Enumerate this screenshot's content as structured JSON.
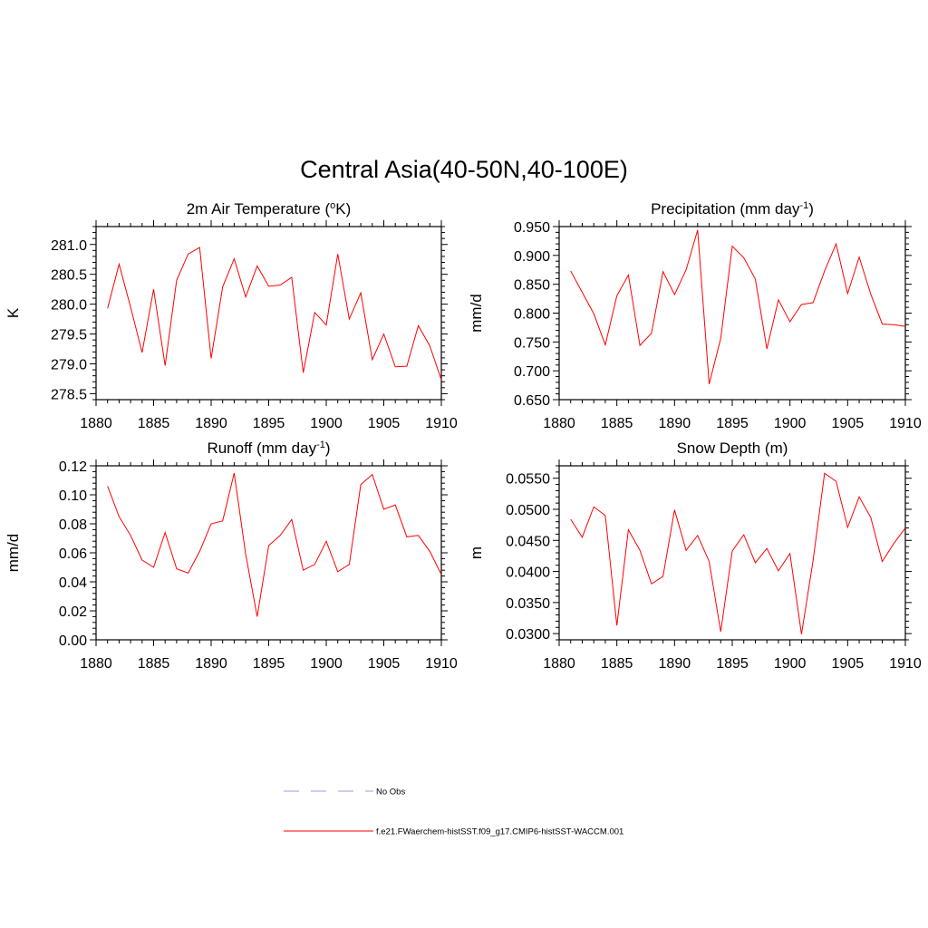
{
  "figure": {
    "title": "Central Asia(40-50N,40-100E)"
  },
  "legend": {
    "entries": [
      {
        "label": "No Obs",
        "color": "#9c9ce0",
        "style": "dashed"
      },
      {
        "label": "f.e21.FWaerchem-histSST.f09_g17.CMIP6-histSST-WACCM.001",
        "color": "#ff0000",
        "style": "solid"
      }
    ]
  },
  "colors": {
    "line": "#ff0000",
    "axis": "#000000"
  },
  "chart_data": [
    {
      "type": "line",
      "title": "2m Air Temperature (°K)",
      "title_parts": {
        "pre": "2m Air Temperature (",
        "sup": "o",
        "post": "K)"
      },
      "ylabel": "K",
      "xlim": [
        1880,
        1910
      ],
      "ylim": [
        278.4,
        281.3
      ],
      "xticks": [
        1880,
        1885,
        1890,
        1895,
        1900,
        1905,
        1910
      ],
      "yticks": [
        278.5,
        279.0,
        279.5,
        280.0,
        280.5,
        281.0
      ],
      "ytick_labels": [
        "278.5",
        "279.0",
        "279.5",
        "280.0",
        "280.5",
        "281.0"
      ],
      "x": [
        1881,
        1882,
        1883,
        1884,
        1885,
        1886,
        1887,
        1888,
        1889,
        1890,
        1891,
        1892,
        1893,
        1894,
        1895,
        1896,
        1897,
        1898,
        1899,
        1900,
        1901,
        1902,
        1903,
        1904,
        1905,
        1906,
        1907,
        1908,
        1909,
        1910
      ],
      "series": [
        {
          "values": [
            279.93,
            280.67,
            279.95,
            279.19,
            280.25,
            278.97,
            280.4,
            280.84,
            280.95,
            279.09,
            280.29,
            280.76,
            280.12,
            280.64,
            280.3,
            280.32,
            280.45,
            278.85,
            279.86,
            279.65,
            280.84,
            279.75,
            280.19,
            279.07,
            279.5,
            278.95,
            278.96,
            279.64,
            279.3,
            278.73
          ]
        }
      ]
    },
    {
      "type": "line",
      "title": "Precipitation (mm day-1)",
      "title_parts": {
        "pre": "Precipitation (mm day",
        "sup": "-1",
        "post": ")"
      },
      "ylabel": "mm/d",
      "xlim": [
        1880,
        1910
      ],
      "ylim": [
        0.65,
        0.95
      ],
      "xticks": [
        1880,
        1885,
        1890,
        1895,
        1900,
        1905,
        1910
      ],
      "yticks": [
        0.65,
        0.7,
        0.75,
        0.8,
        0.85,
        0.9,
        0.95
      ],
      "ytick_labels": [
        "0.650",
        "0.700",
        "0.750",
        "0.800",
        "0.850",
        "0.900",
        "0.950"
      ],
      "x": [
        1881,
        1882,
        1883,
        1884,
        1885,
        1886,
        1887,
        1888,
        1889,
        1890,
        1891,
        1892,
        1893,
        1894,
        1895,
        1896,
        1897,
        1898,
        1899,
        1900,
        1901,
        1902,
        1903,
        1904,
        1905,
        1906,
        1907,
        1908,
        1909,
        1910
      ],
      "series": [
        {
          "values": [
            0.873,
            0.836,
            0.799,
            0.745,
            0.83,
            0.866,
            0.744,
            0.765,
            0.872,
            0.832,
            0.875,
            0.944,
            0.677,
            0.756,
            0.916,
            0.896,
            0.859,
            0.738,
            0.823,
            0.785,
            0.815,
            0.818,
            0.873,
            0.92,
            0.834,
            0.897,
            0.833,
            0.781,
            0.78,
            0.777
          ]
        }
      ]
    },
    {
      "type": "line",
      "title": "Runoff (mm day-1)",
      "title_parts": {
        "pre": "Runoff (mm day",
        "sup": "-1",
        "post": ")"
      },
      "ylabel": "mm/d",
      "xlim": [
        1880,
        1910
      ],
      "ylim": [
        0.0,
        0.12
      ],
      "xticks": [
        1880,
        1885,
        1890,
        1895,
        1900,
        1905,
        1910
      ],
      "yticks": [
        0.0,
        0.02,
        0.04,
        0.06,
        0.08,
        0.1,
        0.12
      ],
      "ytick_labels": [
        "0.00",
        "0.02",
        "0.04",
        "0.06",
        "0.08",
        "0.10",
        "0.12"
      ],
      "x": [
        1881,
        1882,
        1883,
        1884,
        1885,
        1886,
        1887,
        1888,
        1889,
        1890,
        1891,
        1892,
        1893,
        1894,
        1895,
        1896,
        1897,
        1898,
        1899,
        1900,
        1901,
        1902,
        1903,
        1904,
        1905,
        1906,
        1907,
        1908,
        1909,
        1910
      ],
      "series": [
        {
          "values": [
            0.106,
            0.085,
            0.072,
            0.055,
            0.05,
            0.074,
            0.049,
            0.046,
            0.061,
            0.08,
            0.082,
            0.115,
            0.059,
            0.016,
            0.065,
            0.072,
            0.083,
            0.048,
            0.052,
            0.068,
            0.047,
            0.052,
            0.107,
            0.114,
            0.09,
            0.093,
            0.071,
            0.072,
            0.061,
            0.045
          ]
        }
      ]
    },
    {
      "type": "line",
      "title": "Snow Depth (m)",
      "title_parts": {
        "pre": "Snow Depth (m)",
        "sup": "",
        "post": ""
      },
      "ylabel": "m",
      "xlim": [
        1880,
        1910
      ],
      "ylim": [
        0.029,
        0.057
      ],
      "xticks": [
        1880,
        1885,
        1890,
        1895,
        1900,
        1905,
        1910
      ],
      "yticks": [
        0.03,
        0.035,
        0.04,
        0.045,
        0.05,
        0.055
      ],
      "ytick_labels": [
        "0.0300",
        "0.0350",
        "0.0400",
        "0.0450",
        "0.0500",
        "0.0550"
      ],
      "x": [
        1881,
        1882,
        1883,
        1884,
        1885,
        1886,
        1887,
        1888,
        1889,
        1890,
        1891,
        1892,
        1893,
        1894,
        1895,
        1896,
        1897,
        1898,
        1899,
        1900,
        1901,
        1902,
        1903,
        1904,
        1905,
        1906,
        1907,
        1908,
        1909,
        1910
      ],
      "series": [
        {
          "values": [
            0.0484,
            0.0455,
            0.0504,
            0.049,
            0.0313,
            0.0467,
            0.0434,
            0.038,
            0.0392,
            0.0499,
            0.0434,
            0.0458,
            0.0416,
            0.0303,
            0.0433,
            0.0459,
            0.0414,
            0.0437,
            0.0401,
            0.0429,
            0.0299,
            0.0417,
            0.0558,
            0.0545,
            0.0471,
            0.052,
            0.0487,
            0.0416,
            0.0445,
            0.047
          ]
        }
      ]
    }
  ]
}
